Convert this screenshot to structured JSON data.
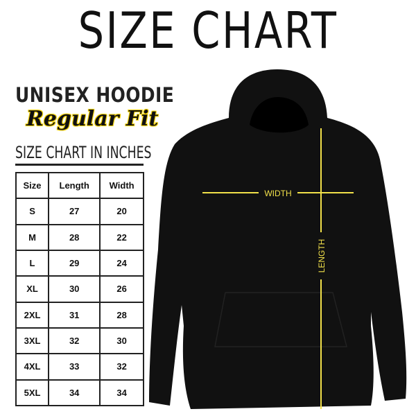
{
  "title": "SIZE CHART",
  "product": "UNISEX HOODIE",
  "fit": "Regular Fit",
  "unit_caption": "SIZE CHART IN INCHES",
  "table": {
    "headers": [
      "Size",
      "Length",
      "Width"
    ],
    "rows": [
      [
        "S",
        "27",
        "20"
      ],
      [
        "M",
        "28",
        "22"
      ],
      [
        "L",
        "29",
        "24"
      ],
      [
        "XL",
        "30",
        "26"
      ],
      [
        "2XL",
        "31",
        "28"
      ],
      [
        "3XL",
        "32",
        "30"
      ],
      [
        "4XL",
        "33",
        "32"
      ],
      [
        "5XL",
        "34",
        "34"
      ]
    ]
  },
  "measure_labels": {
    "width": "WIDTH",
    "length": "LENGTH"
  },
  "colors": {
    "hoodie": "#111111",
    "measure_line": "#f2e14a",
    "highlight": "#f5d40c"
  }
}
